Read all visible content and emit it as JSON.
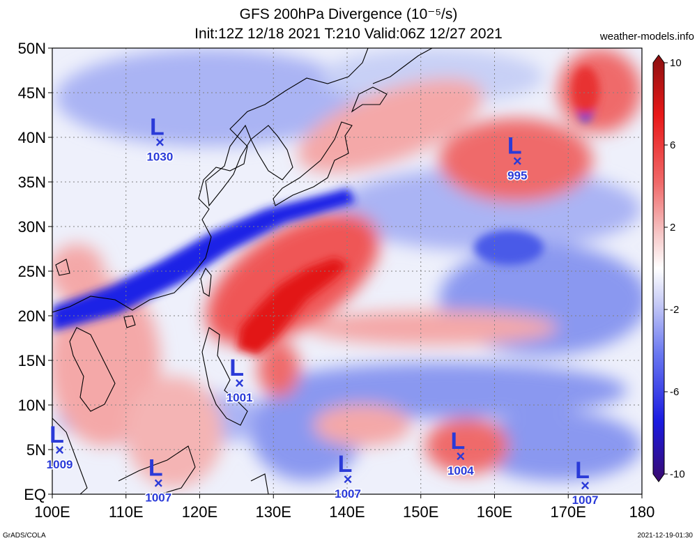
{
  "title_line1": "GFS 200hPa Divergence (10⁻⁵/s)",
  "title_line2": "Init:12Z 12/18 2021 T:210 Valid:06Z 12/27 2021",
  "site": "weather-models.info",
  "footer_left": "GrADS/COLA",
  "footer_right": "2021-12-19-01:30",
  "map": {
    "lon_range": [
      100,
      180
    ],
    "lat_range": [
      0,
      50
    ],
    "lon_ticks": [
      {
        "lon": 100,
        "label": "100E"
      },
      {
        "lon": 110,
        "label": "110E"
      },
      {
        "lon": 120,
        "label": "120E"
      },
      {
        "lon": 130,
        "label": "130E"
      },
      {
        "lon": 140,
        "label": "140E"
      },
      {
        "lon": 150,
        "label": "150E"
      },
      {
        "lon": 160,
        "label": "160E"
      },
      {
        "lon": 170,
        "label": "170E"
      },
      {
        "lon": 180,
        "label": "180"
      }
    ],
    "lat_ticks": [
      {
        "lat": 50,
        "label": "50N"
      },
      {
        "lat": 45,
        "label": "45N"
      },
      {
        "lat": 40,
        "label": "40N"
      },
      {
        "lat": 35,
        "label": "35N"
      },
      {
        "lat": 30,
        "label": "30N"
      },
      {
        "lat": 25,
        "label": "25N"
      },
      {
        "lat": 20,
        "label": "20N"
      },
      {
        "lat": 15,
        "label": "15N"
      },
      {
        "lat": 10,
        "label": "10N"
      },
      {
        "lat": 5,
        "label": "5N"
      },
      {
        "lat": 0,
        "label": "EQ"
      }
    ],
    "gridlines": true
  },
  "colorbar": {
    "range": [
      -10,
      10
    ],
    "labels": [
      {
        "value": 10,
        "label": "10"
      },
      {
        "value": 6,
        "label": "6"
      },
      {
        "value": 2,
        "label": "2"
      },
      {
        "value": -2,
        "label": "-2"
      },
      {
        "value": -6,
        "label": "-6"
      },
      {
        "value": -10,
        "label": "-10"
      }
    ],
    "colors": [
      "#3a0a6e",
      "#1a1ae0",
      "#6a78f0",
      "#c8ccf6",
      "#ffffff",
      "#f6c8c8",
      "#f06a6a",
      "#e81818",
      "#8a1010"
    ]
  },
  "lows": [
    {
      "label": "L",
      "marker": "×",
      "pressure": "1030",
      "lon": 114.6,
      "lat": 39.5
    },
    {
      "label": "L",
      "marker": "×",
      "pressure": "995",
      "lon": 163.1,
      "lat": 37.4
    },
    {
      "label": "L",
      "marker": "×",
      "pressure": "1001",
      "lon": 125.4,
      "lat": 12.5
    },
    {
      "label": "L",
      "marker": "×",
      "pressure": "1009",
      "lon": 101.0,
      "lat": 5.0
    },
    {
      "label": "L",
      "marker": "×",
      "pressure": "1007",
      "lon": 114.4,
      "lat": 1.3
    },
    {
      "label": "L",
      "marker": "×",
      "pressure": "1007",
      "lon": 140.1,
      "lat": 1.7
    },
    {
      "label": "L",
      "marker": "×",
      "pressure": "1004",
      "lon": 155.4,
      "lat": 4.3
    },
    {
      "label": "L",
      "marker": "×",
      "pressure": "1007",
      "lon": 172.3,
      "lat": 1.0
    }
  ],
  "field_colors": {
    "strong_neg": "#1a22e6",
    "neg": "#5a6cee",
    "weak_neg": "#aab4f4",
    "weak_pos": "#f4b4b4",
    "pos": "#ef5656",
    "strong_pos": "#e21414"
  }
}
